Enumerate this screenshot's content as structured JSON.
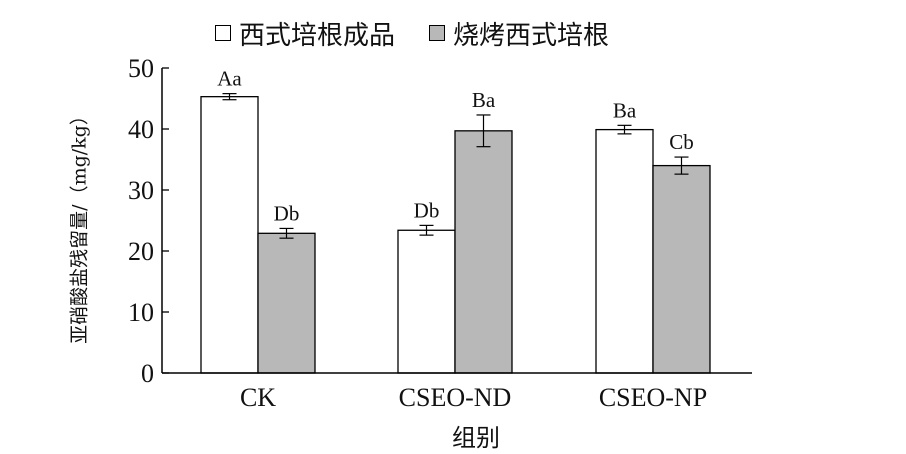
{
  "chart_data": {
    "type": "bar",
    "categories": [
      "CK",
      "CSEO-ND",
      "CSEO-NP"
    ],
    "ylabel": "亚硝酸盐残留量/（mg/kg）",
    "xlabel": "组别",
    "ylim": [
      0,
      50
    ],
    "yticks": [
      0,
      10,
      20,
      30,
      40,
      50
    ],
    "legend_position": "top",
    "series": [
      {
        "name": "西式培根成品",
        "color": "#ffffff",
        "values": [
          45.3,
          23.4,
          39.9
        ],
        "errors": [
          0.5,
          0.8,
          0.7
        ],
        "labels": [
          "Aa",
          "Db",
          "Ba"
        ]
      },
      {
        "name": "烧烤西式培根",
        "color": "#b8b8b8",
        "values": [
          22.9,
          39.7,
          34.0
        ],
        "errors": [
          0.8,
          2.6,
          1.4
        ],
        "labels": [
          "Db",
          "Ba",
          "Cb"
        ]
      }
    ]
  }
}
